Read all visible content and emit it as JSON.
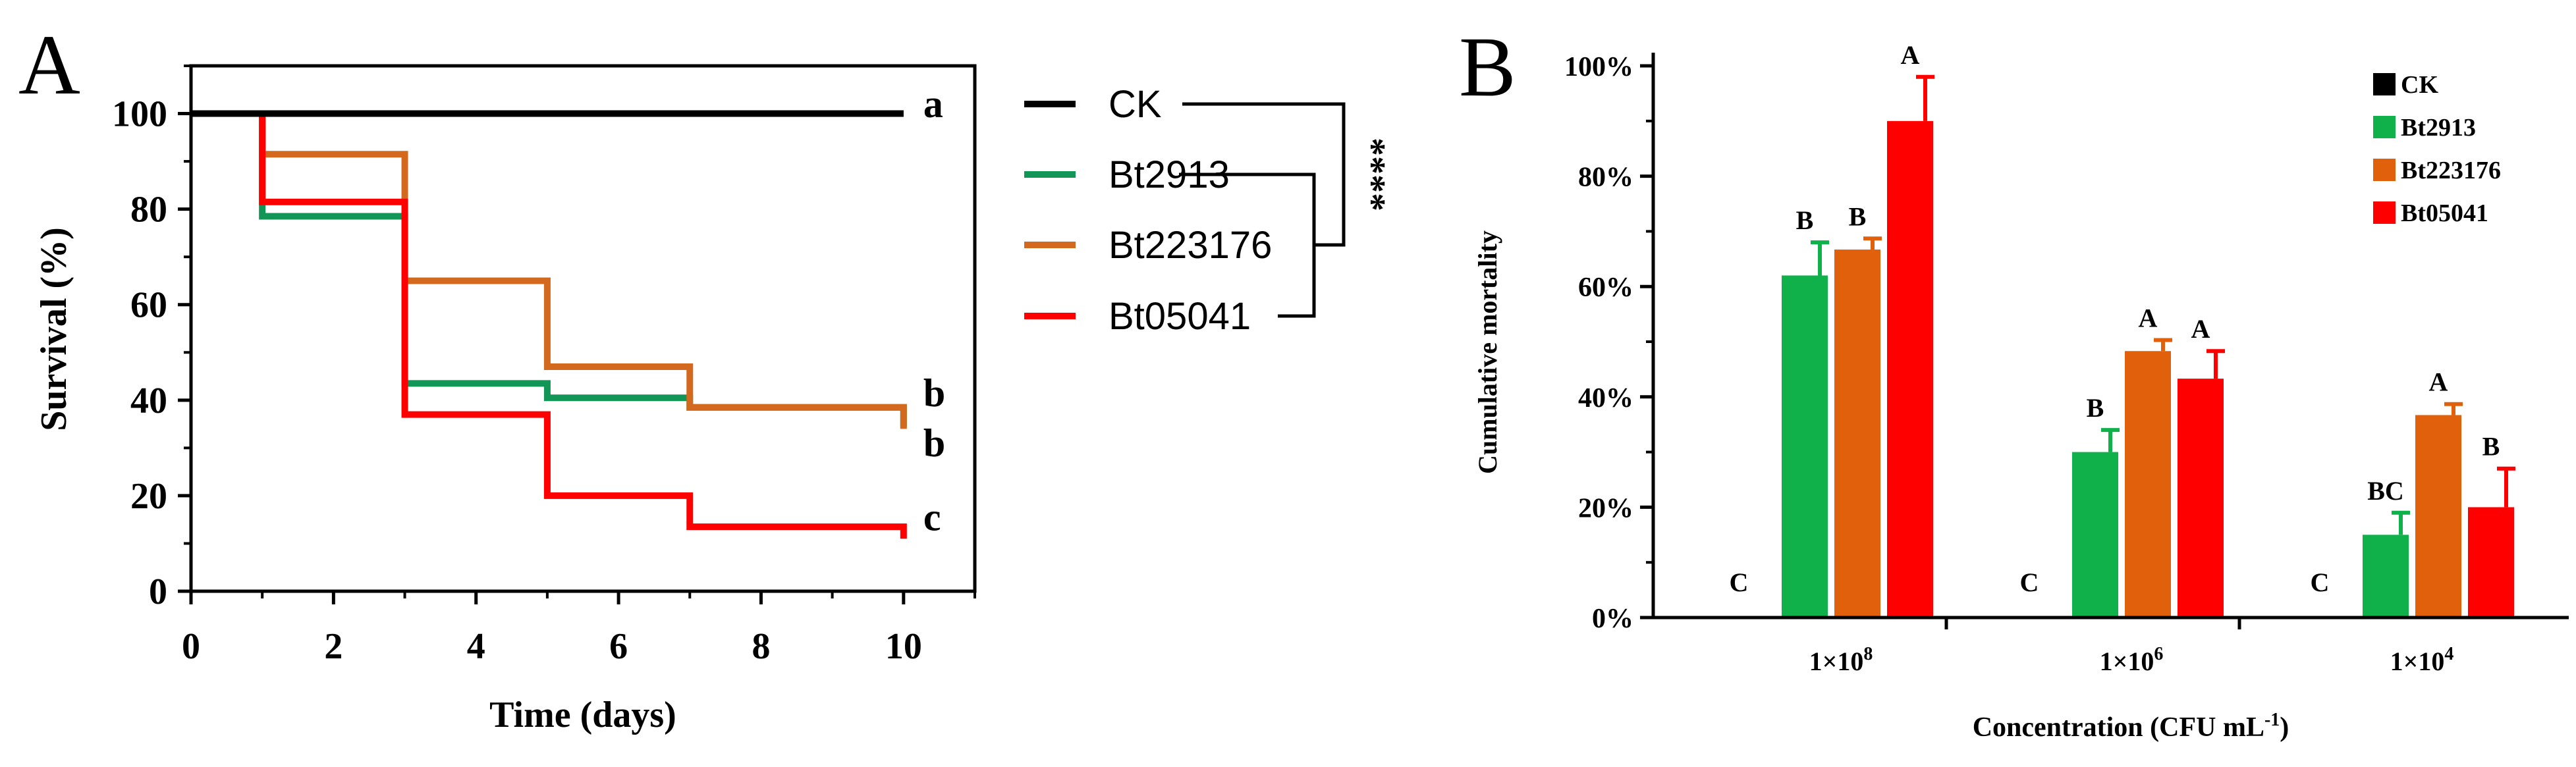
{
  "panels": {
    "a_label": "A",
    "b_label": "B"
  },
  "chart_data": [
    {
      "type": "line",
      "step": true,
      "xlabel": "Time (days)",
      "ylabel": "Survival (%)",
      "xlim": [
        0,
        11
      ],
      "ylim": [
        0,
        110
      ],
      "xticks": [
        "0",
        "2",
        "4",
        "6",
        "8",
        "10"
      ],
      "yticks": [
        "0",
        "20",
        "40",
        "60",
        "80",
        "100"
      ],
      "grid": false,
      "legend": "right",
      "significance": "****",
      "series": [
        {
          "name": "CK",
          "color": "#000000",
          "x": [
            0,
            10
          ],
          "y": [
            100,
            100
          ],
          "end_label": "a",
          "end_label_y": 102
        },
        {
          "name": "Bt2913",
          "color": "#119657",
          "x": [
            1,
            1,
            3,
            3,
            5,
            5,
            7,
            7,
            10,
            10
          ],
          "y": [
            100,
            78.5,
            78.5,
            43.5,
            43.5,
            40.5,
            40.5,
            38.5,
            38.5,
            34.5
          ],
          "end_label": "b",
          "end_label_y": 41.5
        },
        {
          "name": "Bt223176",
          "color": "#D2691E",
          "x": [
            1,
            1,
            3,
            3,
            5,
            5,
            7,
            7,
            10,
            10
          ],
          "y": [
            100,
            91.5,
            91.5,
            65,
            65,
            47,
            47,
            38.5,
            38.5,
            34
          ],
          "end_label": "b",
          "end_label_y": 31
        },
        {
          "name": "Bt05041",
          "color": "#FF0000",
          "x": [
            1,
            1,
            3,
            3,
            5,
            5,
            7,
            7,
            10,
            10
          ],
          "y": [
            100,
            81.5,
            81.5,
            37,
            37,
            20,
            20,
            13.5,
            13.5,
            11
          ],
          "end_label": "c",
          "end_label_y": 15.5
        }
      ]
    },
    {
      "type": "bar",
      "xlabel": "Concentration  (CFU mL",
      "xlabel_sup": "-1",
      "xlabel_end": ")",
      "ylabel": "Cumulative mortality",
      "ylim": [
        0,
        100
      ],
      "yticks": [
        "0%",
        "20%",
        "40%",
        "60%",
        "80%",
        "100%"
      ],
      "grid": false,
      "legend": "top-right",
      "categories": [
        {
          "base": "1×10",
          "exp": "8"
        },
        {
          "base": "1×10",
          "exp": "6"
        },
        {
          "base": "1×10",
          "exp": "4"
        }
      ],
      "series": [
        {
          "name": "CK",
          "color": "#000000",
          "values": [
            0,
            0,
            0
          ],
          "errors": [
            0,
            0,
            0
          ],
          "letters": [
            "C",
            "C",
            "C"
          ]
        },
        {
          "name": "Bt2913",
          "color": "#10B14B",
          "values": [
            62,
            30,
            15
          ],
          "errors": [
            6,
            4,
            4
          ],
          "letters": [
            "B",
            "B",
            "BC"
          ]
        },
        {
          "name": "Bt223176",
          "color": "#E1600C",
          "values": [
            66.7,
            48.3,
            36.7
          ],
          "errors": [
            2,
            2,
            2
          ],
          "letters": [
            "B",
            "A",
            "A"
          ]
        },
        {
          "name": "Bt05041",
          "color": "#FF0000",
          "values": [
            90,
            43.3,
            20
          ],
          "errors": [
            8,
            5,
            7
          ],
          "letters": [
            "A",
            "A",
            "B"
          ]
        }
      ]
    }
  ]
}
